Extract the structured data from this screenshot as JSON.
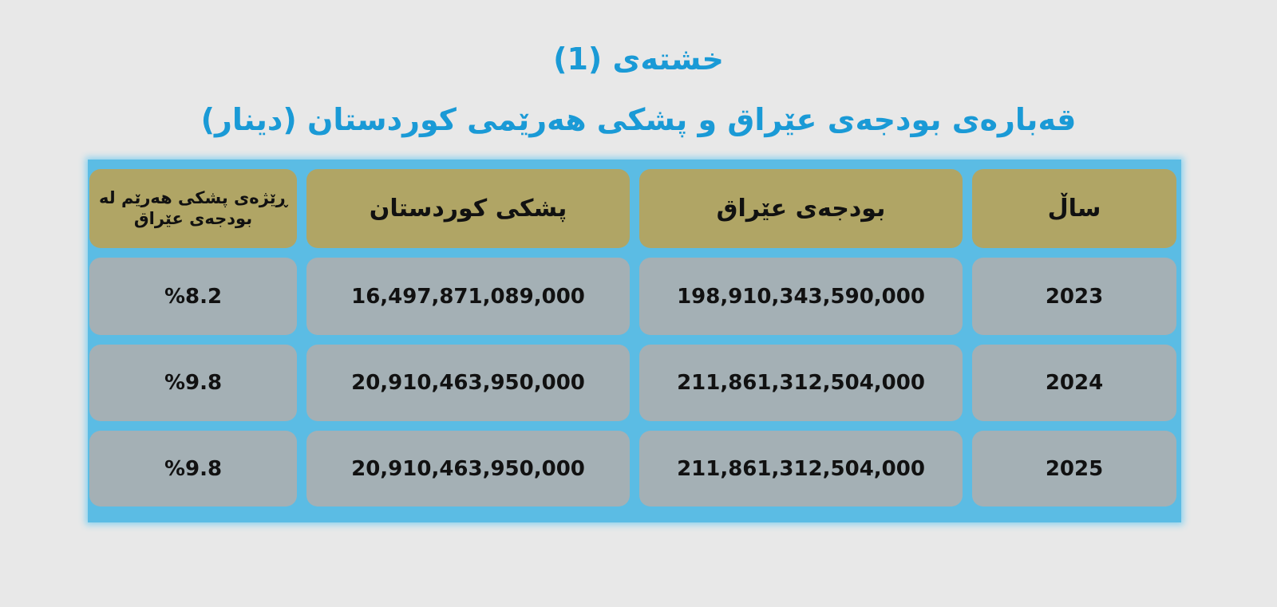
{
  "title": "خشتەی (1)",
  "subtitle": "قەبارەی بودجەی عێراق و پشکی هەرێمی کوردستان (دینار)",
  "colors": {
    "title": "#1a9ad6",
    "frame": "#5bbce4",
    "header_cell": "#b0a565",
    "body_cell": "#a4b0b5",
    "background": "#e8e8e8"
  },
  "table": {
    "headers": [
      "ساڵ",
      "بودجەی عێراق",
      "پشکی کوردستان",
      "ڕێژەی پشکی هەرێم لە بودجەی عێراق"
    ],
    "rows": [
      [
        "2023",
        "198,910,343,590,000",
        "16,497,871,089,000",
        "%8.2"
      ],
      [
        "2024",
        "211,861,312,504,000",
        "20,910,463,950,000",
        "%9.8"
      ],
      [
        "2025",
        "211,861,312,504,000",
        "20,910,463,950,000",
        "%9.8"
      ]
    ]
  }
}
